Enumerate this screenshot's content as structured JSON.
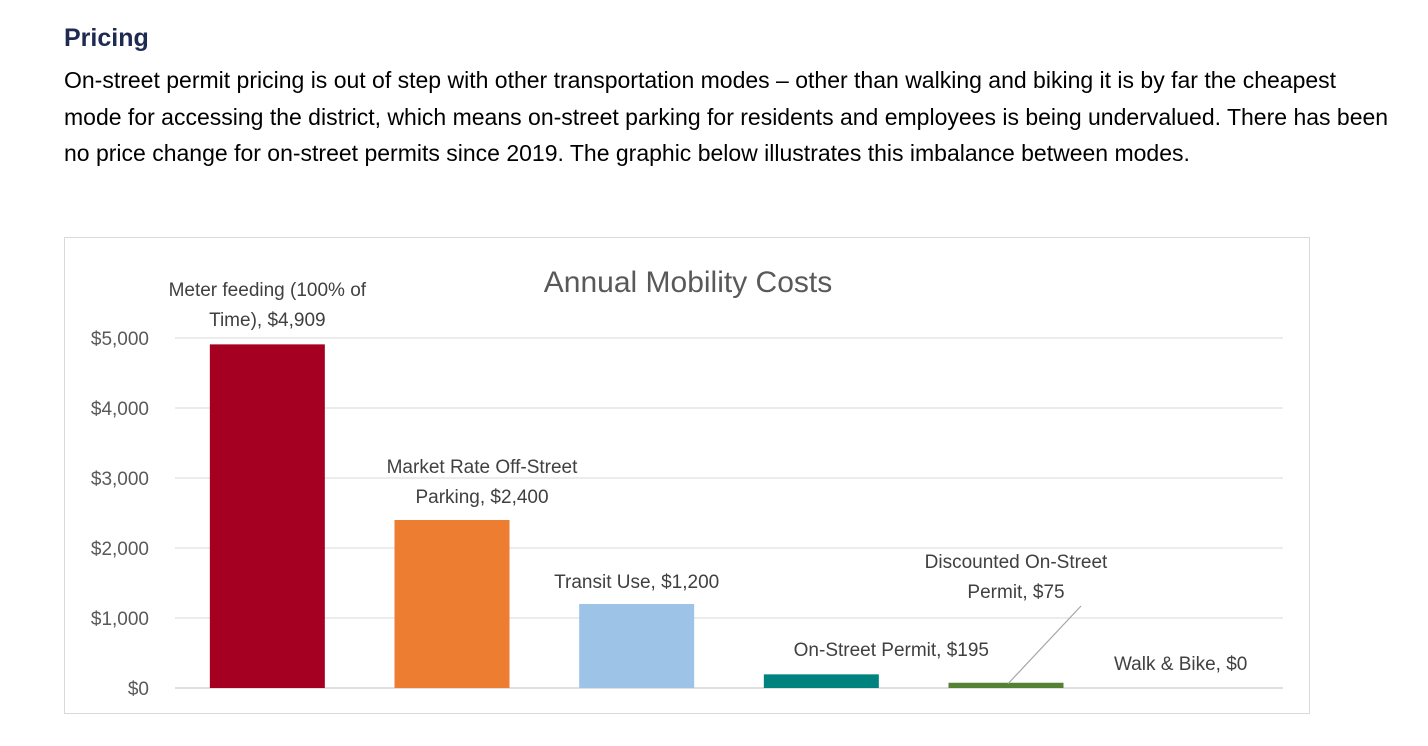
{
  "section": {
    "heading": "Pricing",
    "paragraph": "On-street permit pricing is out of step with other transportation modes – other than walking and biking it is by far the cheapest mode for accessing the district, which means on-street parking for residents and employees is being undervalued. There has been no price change for on-street permits since 2019. The graphic below illustrates this imbalance between modes."
  },
  "chart_data": {
    "type": "bar",
    "title": "Annual Mobility Costs",
    "xlabel": "",
    "ylabel": "",
    "ylim": [
      0,
      5000
    ],
    "yticks": [
      0,
      1000,
      2000,
      3000,
      4000,
      5000
    ],
    "ytick_labels": [
      "$0",
      "$1,000",
      "$2,000",
      "$3,000",
      "$4,000",
      "$5,000"
    ],
    "grid": true,
    "legend": "none",
    "categories": [
      "Meter feeding (100% of Time)",
      "Market Rate Off-Street Parking",
      "Transit Use",
      "On-Street Permit",
      "Discounted On-Street Permit",
      "Walk & Bike"
    ],
    "values": [
      4909,
      2400,
      1200,
      195,
      75,
      0
    ],
    "colors": [
      "#a50021",
      "#ed7d31",
      "#9dc3e6",
      "#00827f",
      "#548235",
      "#7f7f7f"
    ],
    "data_labels": [
      [
        "Meter feeding (100% of",
        "Time), $4,909"
      ],
      [
        "Market Rate Off-Street",
        "Parking, $2,400"
      ],
      [
        "Transit Use, $1,200"
      ],
      [
        "On-Street Permit, $195"
      ],
      [
        "Discounted On-Street",
        "Permit, $75"
      ],
      [
        "Walk & Bike, $0"
      ]
    ]
  }
}
